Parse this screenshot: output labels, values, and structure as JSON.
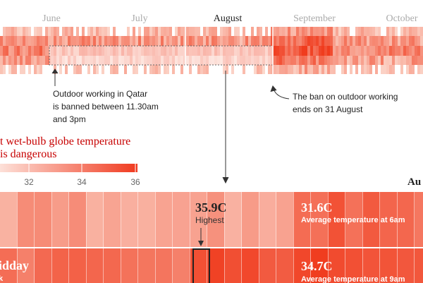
{
  "months": [
    "June",
    "July",
    "August",
    "September",
    "October"
  ],
  "annotations": {
    "qatar": [
      "Outdoor working in Qatar",
      "is banned between 11.30am",
      "and 3pm"
    ],
    "ban_end": [
      "The ban on outdoor working",
      "ends on 31 August"
    ]
  },
  "legend": {
    "title": [
      "t wet-bulb globe temperature",
      "is dangerous"
    ],
    "ticks": [
      "32",
      "34",
      "36"
    ]
  },
  "section_label": "Au",
  "highest": {
    "value": "35.9C",
    "label": "Highest"
  },
  "rows": [
    {
      "label": "",
      "value": "31.6C",
      "caption": "Average temperature at 6am"
    },
    {
      "label": "idday",
      "sub": "k",
      "value": "34.7C",
      "caption": "Average temperature at 9am"
    }
  ]
}
